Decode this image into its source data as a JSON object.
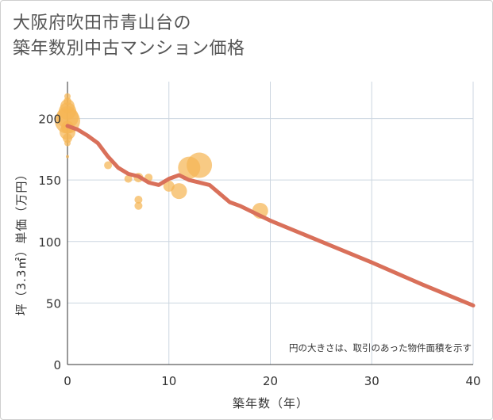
{
  "title_line1": "大阪府吹田市青山台の",
  "title_line2": "築年数別中古マンション価格",
  "chart_data": {
    "type": "scatter",
    "xlabel": "築年数（年）",
    "ylabel": "坪（3.3㎡）単価（万円）",
    "xlim": [
      0,
      40
    ],
    "ylim": [
      0,
      230
    ],
    "xticks": [
      0,
      10,
      20,
      30,
      40
    ],
    "yticks": [
      0,
      50,
      100,
      150,
      200
    ],
    "grid": true,
    "annotation": "円の大きさは、取引のあった物件面積を示す",
    "colors": {
      "bubble": "#f5b555",
      "line": "#d9705a",
      "grid": "#ccd6e0"
    },
    "points": [
      {
        "x": 0,
        "y": 218,
        "size": 4
      },
      {
        "x": 0,
        "y": 214,
        "size": 5
      },
      {
        "x": 0,
        "y": 210,
        "size": 9
      },
      {
        "x": 0,
        "y": 206,
        "size": 11
      },
      {
        "x": 0,
        "y": 201,
        "size": 14
      },
      {
        "x": 0,
        "y": 198,
        "size": 16
      },
      {
        "x": 0,
        "y": 193,
        "size": 8
      },
      {
        "x": 0,
        "y": 189,
        "size": 10
      },
      {
        "x": 0,
        "y": 184,
        "size": 6
      },
      {
        "x": 0,
        "y": 180,
        "size": 4
      },
      {
        "x": 0,
        "y": 169,
        "size": 2
      },
      {
        "x": 4,
        "y": 162,
        "size": 5
      },
      {
        "x": 6,
        "y": 151,
        "size": 5
      },
      {
        "x": 7,
        "y": 152,
        "size": 6
      },
      {
        "x": 8,
        "y": 152,
        "size": 5
      },
      {
        "x": 7,
        "y": 134,
        "size": 5
      },
      {
        "x": 7,
        "y": 129,
        "size": 5
      },
      {
        "x": 10,
        "y": 145,
        "size": 7
      },
      {
        "x": 11,
        "y": 141,
        "size": 10
      },
      {
        "x": 12,
        "y": 160,
        "size": 14
      },
      {
        "x": 13,
        "y": 162,
        "size": 16
      },
      {
        "x": 19,
        "y": 125,
        "size": 10
      }
    ],
    "trend": {
      "x": [
        0,
        1,
        2,
        3,
        4,
        5,
        6,
        7,
        8,
        9,
        10,
        11,
        12,
        13,
        14,
        15,
        16,
        17,
        18,
        19,
        20,
        25,
        30,
        35,
        40
      ],
      "y": [
        194,
        191,
        186,
        180,
        169,
        160,
        155,
        153,
        148,
        146,
        151,
        154,
        150,
        148,
        146,
        139,
        132,
        129,
        125,
        121,
        117,
        100,
        83,
        65,
        48
      ]
    }
  }
}
